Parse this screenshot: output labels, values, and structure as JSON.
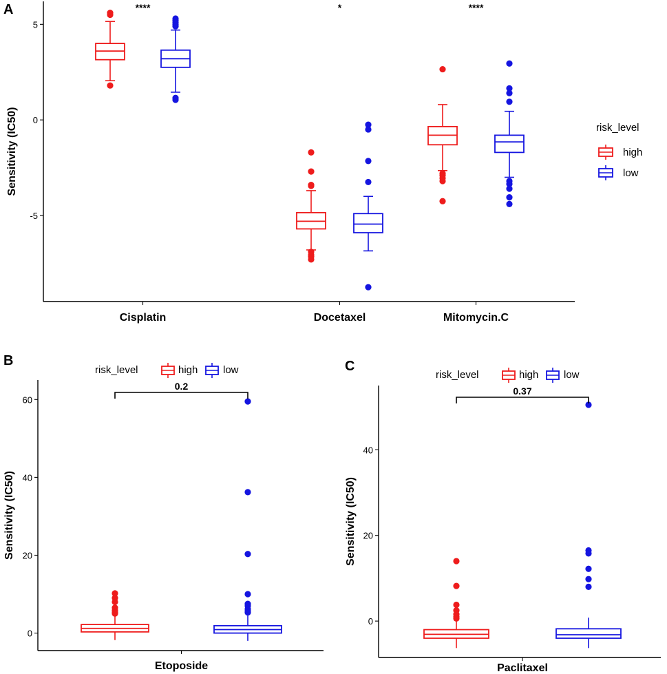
{
  "colors": {
    "high": "#ee1c1c",
    "low": "#1515e0"
  },
  "legend": {
    "title": "risk_level",
    "labels": [
      "high",
      "low"
    ]
  },
  "chart_data": [
    {
      "panel": "A",
      "type": "box",
      "ylabel": "Sensitivity (IC50)",
      "ylim": [
        -9.5,
        6.2
      ],
      "yticks": [
        5,
        0,
        -5
      ],
      "yticklabels": [
        "5",
        "0",
        "-5"
      ],
      "categories": [
        "Cisplatin",
        "Docetaxel",
        "Mitomycin.C"
      ],
      "significance": [
        "****",
        "*",
        "****"
      ],
      "series": [
        {
          "name": "high",
          "boxes": [
            {
              "q1": 3.15,
              "median": 3.6,
              "q3": 4.0,
              "whisker_low": 2.05,
              "whisker_high": 5.15,
              "outliers": [
                5.5,
                5.6,
                1.8
              ]
            },
            {
              "q1": -5.7,
              "median": -5.3,
              "q3": -4.85,
              "whisker_low": -6.8,
              "whisker_high": -3.7,
              "outliers": [
                -1.7,
                -2.7,
                -3.4,
                -3.45,
                -6.9,
                -7.05,
                -7.15,
                -7.3
              ]
            },
            {
              "q1": -1.3,
              "median": -0.8,
              "q3": -0.35,
              "whisker_low": -2.65,
              "whisker_high": 0.8,
              "outliers": [
                2.65,
                -2.8,
                -2.9,
                -3.05,
                -3.2,
                -4.25
              ]
            }
          ]
        },
        {
          "name": "low",
          "boxes": [
            {
              "q1": 2.75,
              "median": 3.2,
              "q3": 3.65,
              "whisker_low": 1.45,
              "whisker_high": 4.7,
              "outliers": [
                5.3,
                5.2,
                5.1,
                5.0,
                4.9,
                1.15,
                1.05
              ]
            },
            {
              "q1": -5.9,
              "median": -5.45,
              "q3": -4.9,
              "whisker_low": -6.85,
              "whisker_high": -4.0,
              "outliers": [
                -0.25,
                -0.5,
                -2.15,
                -3.25,
                -8.75
              ]
            },
            {
              "q1": -1.7,
              "median": -1.15,
              "q3": -0.8,
              "whisker_low": -3.0,
              "whisker_high": 0.45,
              "outliers": [
                2.95,
                1.65,
                1.4,
                0.95,
                -3.2,
                -3.35,
                -3.6,
                -4.05,
                -4.4
              ]
            }
          ]
        }
      ]
    },
    {
      "panel": "B",
      "type": "box",
      "ylabel": "Sensitivity (IC50)",
      "ylim": [
        -4.5,
        65
      ],
      "yticks": [
        60,
        40,
        20,
        0
      ],
      "yticklabels": [
        "60",
        "40",
        "20",
        "0"
      ],
      "categories": [
        "Etoposide"
      ],
      "comparison_p": "0.2",
      "series": [
        {
          "name": "high",
          "boxes": [
            {
              "q1": 0.3,
              "median": 1.2,
              "q3": 2.2,
              "whisker_low": -1.8,
              "whisker_high": 4.5,
              "outliers": [
                10.2,
                9.0,
                8.0,
                6.5,
                5.8,
                5.3,
                5.0
              ]
            }
          ]
        },
        {
          "name": "low",
          "boxes": [
            {
              "q1": 0.0,
              "median": 0.9,
              "q3": 1.9,
              "whisker_low": -2.0,
              "whisker_high": 4.5,
              "outliers": [
                59.5,
                36.2,
                20.3,
                10.0,
                7.5,
                7.0,
                6.2,
                5.7,
                5.3
              ]
            }
          ]
        }
      ]
    },
    {
      "panel": "C",
      "type": "box",
      "ylabel": "Sensitivity (IC50)",
      "ylim": [
        -8.5,
        55
      ],
      "yticks": [
        40,
        20,
        0
      ],
      "yticklabels": [
        "40",
        "20",
        "0"
      ],
      "categories": [
        "Paclitaxel"
      ],
      "comparison_p": "0.37",
      "series": [
        {
          "name": "high",
          "boxes": [
            {
              "q1": -4.0,
              "median": -3.1,
              "q3": -2.0,
              "whisker_low": -6.3,
              "whisker_high": 0.2,
              "outliers": [
                14.0,
                8.2,
                3.8,
                2.5,
                1.6,
                1.0,
                0.6
              ]
            }
          ]
        },
        {
          "name": "low",
          "boxes": [
            {
              "q1": -4.0,
              "median": -3.2,
              "q3": -1.8,
              "whisker_low": -6.3,
              "whisker_high": 0.8,
              "outliers": [
                50.5,
                16.5,
                15.8,
                12.2,
                9.8,
                8.0
              ]
            }
          ]
        }
      ]
    }
  ]
}
